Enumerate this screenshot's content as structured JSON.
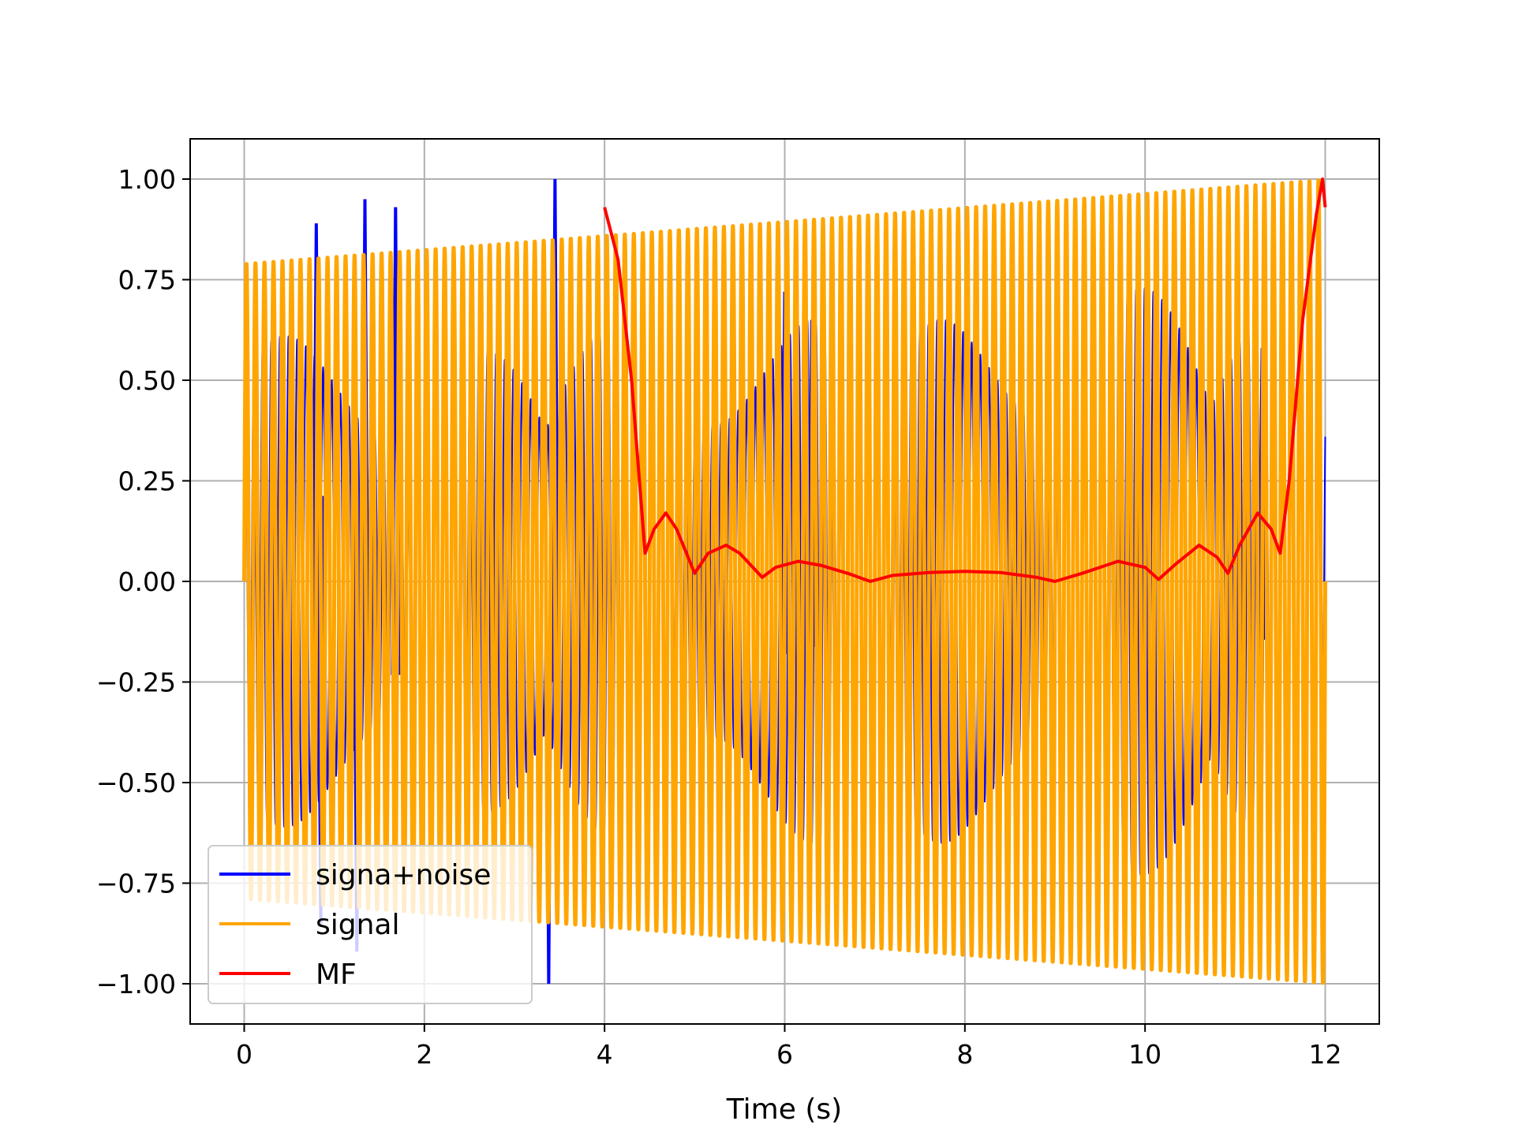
{
  "chart_data": {
    "type": "line",
    "title": "",
    "xlabel": "Time (s)",
    "ylabel": "",
    "xlim": [
      -0.6,
      12.6
    ],
    "ylim": [
      -1.1,
      1.1
    ],
    "xticks": [
      0,
      2,
      4,
      6,
      8,
      10,
      12
    ],
    "xtick_labels": [
      "0",
      "2",
      "4",
      "6",
      "8",
      "10",
      "12"
    ],
    "yticks": [
      1.0,
      0.75,
      0.5,
      0.25,
      0.0,
      -0.25,
      -0.5,
      -0.75,
      -1.0
    ],
    "ytick_labels": [
      "1.00",
      "0.75",
      "0.50",
      "0.25",
      "0.00",
      "−0.25",
      "−0.50",
      "−0.75",
      "−1.00"
    ],
    "grid": true,
    "legend_position": "bottom-left",
    "series": [
      {
        "name": "signa+noise",
        "color": "#0000ff",
        "oscillation": {
          "t_start": 0,
          "t_end": 12,
          "cycles": 125,
          "amplitude_start": 0.55,
          "amplitude_end": 0.7
        },
        "notable_peaks": [
          {
            "x": 0.8,
            "y": 0.89
          },
          {
            "x": 0.85,
            "y": -0.85
          },
          {
            "x": 1.34,
            "y": 0.95
          },
          {
            "x": 1.25,
            "y": -0.92
          },
          {
            "x": 1.68,
            "y": 0.93
          },
          {
            "x": 3.38,
            "y": -1.0
          },
          {
            "x": 3.45,
            "y": 1.0
          },
          {
            "x": 6.0,
            "y": 0.72
          },
          {
            "x": 6.3,
            "y": 0.65
          },
          {
            "x": 11.3,
            "y": 0.58
          }
        ]
      },
      {
        "name": "signal",
        "color": "#ffa500",
        "oscillation": {
          "t_start": 0,
          "t_end": 12,
          "cycles": 120,
          "amplitude_start": 0.79,
          "amplitude_end": 1.0
        }
      },
      {
        "name": "MF",
        "color": "#ff0000",
        "x": [
          4.0,
          4.15,
          4.3,
          4.45,
          4.55,
          4.68,
          4.8,
          5.0,
          5.15,
          5.35,
          5.5,
          5.75,
          5.9,
          6.15,
          6.4,
          6.7,
          6.95,
          7.2,
          7.6,
          8.0,
          8.4,
          8.8,
          9.0,
          9.3,
          9.7,
          10.0,
          10.15,
          10.35,
          10.6,
          10.8,
          10.92,
          11.05,
          11.25,
          11.4,
          11.5,
          11.6,
          11.75,
          11.9,
          11.97,
          12.0
        ],
        "y": [
          0.93,
          0.8,
          0.5,
          0.07,
          0.13,
          0.17,
          0.13,
          0.02,
          0.07,
          0.09,
          0.07,
          0.01,
          0.035,
          0.05,
          0.04,
          0.02,
          0.0,
          0.015,
          0.022,
          0.025,
          0.022,
          0.01,
          0.0,
          0.02,
          0.05,
          0.035,
          0.005,
          0.045,
          0.09,
          0.06,
          0.02,
          0.09,
          0.17,
          0.13,
          0.07,
          0.25,
          0.65,
          0.91,
          1.0,
          0.93
        ]
      }
    ]
  }
}
